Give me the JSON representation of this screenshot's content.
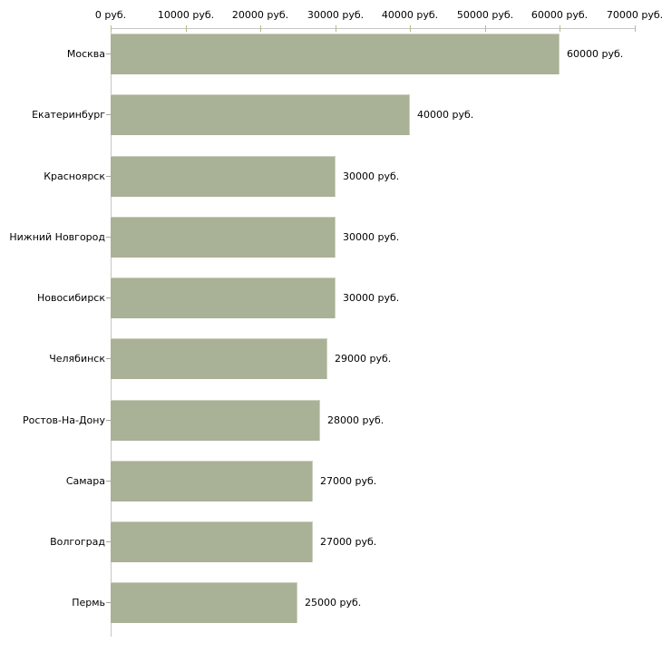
{
  "chart_data": {
    "type": "bar",
    "orientation": "horizontal",
    "title": "",
    "unit": "руб.",
    "categories": [
      "Москва",
      "Екатеринбург",
      "Красноярск",
      "Нижний Новгород",
      "Новосибирск",
      "Челябинск",
      "Ростов-На-Дону",
      "Самара",
      "Волгоград",
      "Пермь"
    ],
    "values": [
      60000,
      40000,
      30000,
      30000,
      30000,
      29000,
      28000,
      27000,
      27000,
      25000
    ],
    "value_labels": [
      "60000 руб.",
      "40000 руб.",
      "30000 руб.",
      "30000 руб.",
      "30000 руб.",
      "29000 руб.",
      "28000 руб.",
      "27000 руб.",
      "27000 руб.",
      "25000 руб."
    ],
    "x_axis": {
      "position": "top",
      "range": [
        0,
        70000
      ],
      "ticks": [
        0,
        10000,
        20000,
        30000,
        40000,
        50000,
        60000,
        70000
      ],
      "tick_labels": [
        "0 руб.",
        "10000 руб.",
        "20000 руб.",
        "30000 руб.",
        "40000 руб.",
        "50000 руб.",
        "60000 руб.",
        "70000 руб."
      ]
    },
    "grid": false,
    "legend": null,
    "colors": {
      "bar_fill": "#a9b196",
      "bar_border": "#ccd0bf",
      "axis_line": "#c6c6c6",
      "axis_tick": "#b9ba8c",
      "category_tick": "#a6a699",
      "text": "#000000",
      "background": "#ffffff"
    }
  }
}
